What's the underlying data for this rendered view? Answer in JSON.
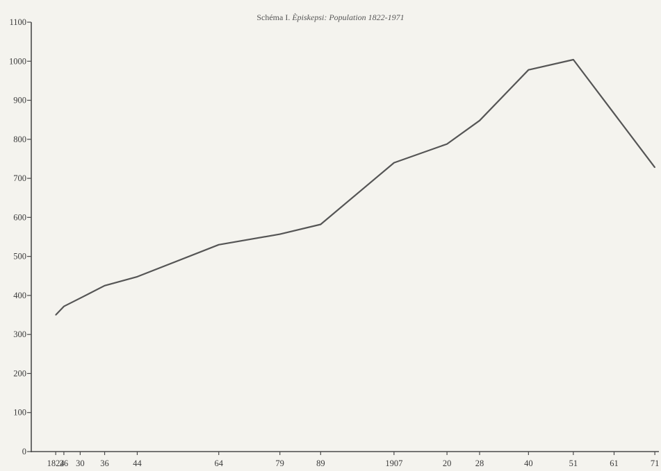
{
  "chart_data": {
    "type": "line",
    "title_prefix": "Schéma I.",
    "title_italic": "Èpiskepsi: Population 1822-1971",
    "xlabel": "",
    "ylabel": "",
    "ylim": [
      0,
      1100
    ],
    "yticks": [
      0,
      100,
      200,
      300,
      400,
      500,
      600,
      700,
      800,
      900,
      1000,
      1100
    ],
    "xlim": [
      1818,
      1972
    ],
    "xtick_values": [
      1824,
      1826,
      1830,
      1836,
      1844,
      1864,
      1879,
      1889,
      1907,
      1920,
      1928,
      1940,
      1951,
      1961,
      1971
    ],
    "xtick_labels": [
      "1824",
      "26",
      "30",
      "36",
      "44",
      "64",
      "79",
      "89",
      "1907",
      "20",
      "28",
      "40",
      "51",
      "61",
      "71"
    ],
    "grid": false,
    "legend": "none",
    "series": [
      {
        "x": [
          1824,
          1826,
          1830,
          1836,
          1844,
          1864,
          1879,
          1889,
          1907,
          1920,
          1928,
          1940,
          1951,
          1971
        ],
        "y": [
          350,
          372,
          393,
          425,
          448,
          530,
          557,
          582,
          740,
          788,
          848,
          978,
          1004,
          728
        ]
      }
    ],
    "colors": {
      "line": "#555555",
      "axis": "#4a4a4a",
      "background": "#f4f3ee"
    }
  }
}
